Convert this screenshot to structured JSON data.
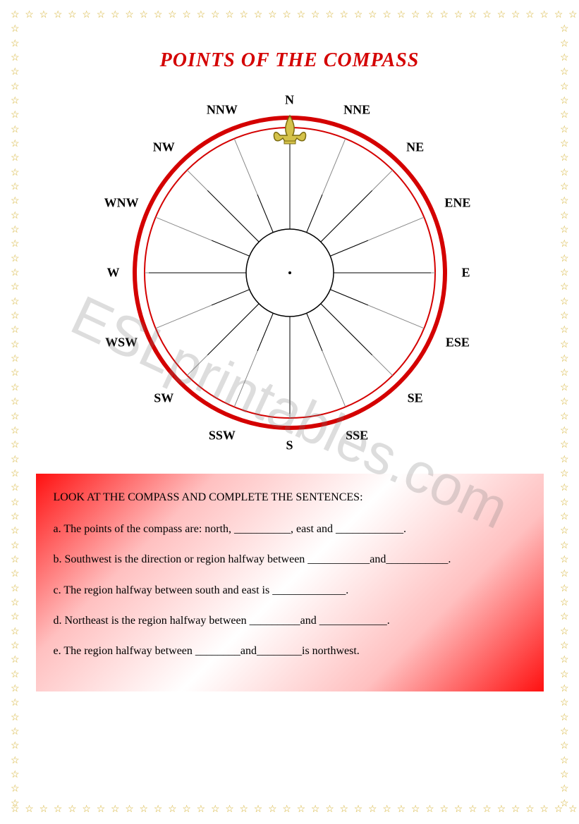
{
  "title": "POINTS OF THE COMPASS",
  "watermark": "ESLprintables.com",
  "compass": {
    "outer_ring_color": "#d40000",
    "cardinal_color": "#d40000",
    "ordinal_color": "#1a2fbf",
    "background": "#ffffff",
    "fleur_color": "#d4c24a",
    "directions": [
      {
        "label": "N",
        "angle": 0,
        "r": 245
      },
      {
        "label": "NNE",
        "angle": 22.5,
        "r": 250
      },
      {
        "label": "NE",
        "angle": 45,
        "r": 252
      },
      {
        "label": "ENE",
        "angle": 67.5,
        "r": 258
      },
      {
        "label": "E",
        "angle": 90,
        "r": 250
      },
      {
        "label": "ESE",
        "angle": 112.5,
        "r": 258
      },
      {
        "label": "SE",
        "angle": 135,
        "r": 252
      },
      {
        "label": "SSE",
        "angle": 157.5,
        "r": 250
      },
      {
        "label": "S",
        "angle": 180,
        "r": 245
      },
      {
        "label": "SSW",
        "angle": 202.5,
        "r": 250
      },
      {
        "label": "SW",
        "angle": 225,
        "r": 252
      },
      {
        "label": "WSW",
        "angle": 247.5,
        "r": 258
      },
      {
        "label": "W",
        "angle": 270,
        "r": 250
      },
      {
        "label": "WNW",
        "angle": 292.5,
        "r": 258
      },
      {
        "label": "NW",
        "angle": 315,
        "r": 252
      },
      {
        "label": "NNW",
        "angle": 337.5,
        "r": 250
      }
    ]
  },
  "questions": {
    "instruction": "LOOK AT THE COMPASS AND COMPLETE THE SENTENCES:",
    "items": [
      "a.  The  points  of  the  compass  are:  north,  __________,  east  and ____________.",
      "b.  Southwest   is   the   direction   or   region   halfway   between ___________and___________.",
      "c.   The region halfway between south and east is _____________.",
      "d.   Northeast is the region halfway between  _________and ____________.",
      "e.   The region halfway between ________and________is northwest."
    ]
  },
  "border": {
    "star_color": "#d4b030",
    "count_h": 40,
    "count_v": 57
  }
}
